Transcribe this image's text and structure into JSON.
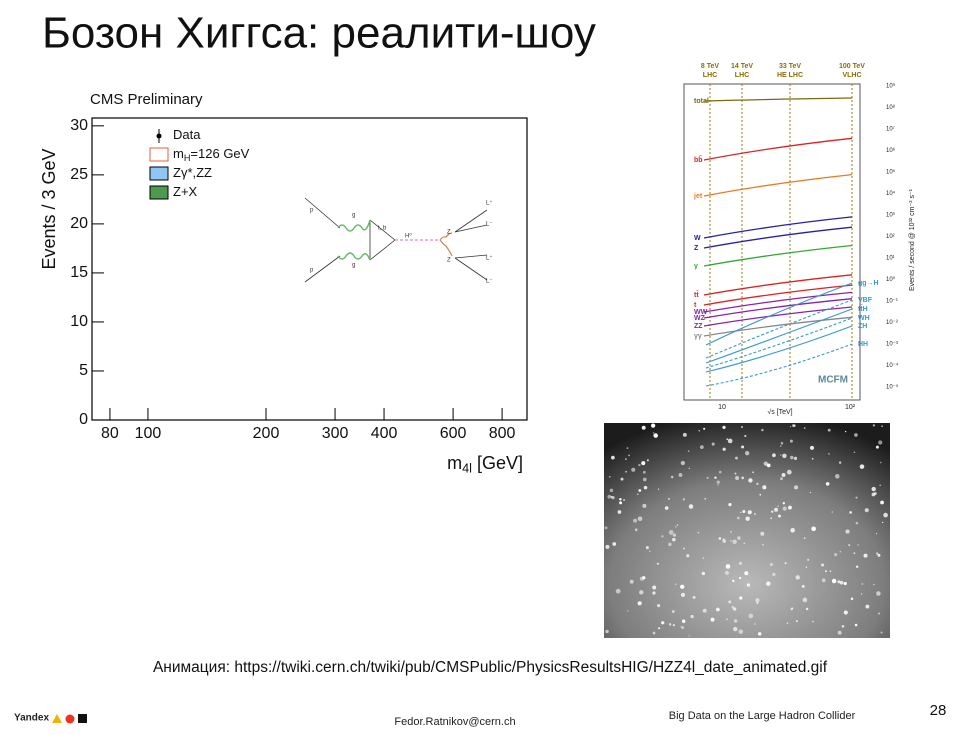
{
  "title": "Бозон Хиггса: реалити-шоу",
  "cms_plot": {
    "label": "CMS Preliminary",
    "ylabel": "Events / 3 GeV",
    "xlabel": {
      "main": "m",
      "sub": "4l",
      "rest": " [GeV]"
    },
    "legend": [
      {
        "main": "Data"
      },
      {
        "main": "m",
        "sub": "H",
        "rest": "=126 GeV",
        "color": "#e8603c"
      },
      {
        "main": "Zγ*,ZZ",
        "color": "#8ec7f5"
      },
      {
        "main": "Z+X",
        "color": "#4e9a4e"
      }
    ],
    "ylim": [
      0,
      30.8
    ],
    "yticks": [
      0,
      5,
      10,
      15,
      20,
      25,
      30
    ],
    "xlim": [
      72,
      926
    ],
    "xticks": [
      80,
      100,
      200,
      300,
      400,
      600,
      800
    ],
    "xscale": "log"
  },
  "feynman": {
    "labels": [
      "p",
      "p",
      "g",
      "g",
      "t, b",
      "H⁰",
      "Z",
      "Z",
      "L⁺",
      "L⁻",
      "L⁺",
      "L⁻"
    ]
  },
  "cross_section": {
    "energies": [
      {
        "energy": "8 TeV",
        "machine": "LHC"
      },
      {
        "energy": "14 TeV",
        "machine": "LHC"
      },
      {
        "energy": "33 TeV",
        "machine": "HE LHC"
      },
      {
        "energy": "100 TeV",
        "machine": "VLHC"
      }
    ],
    "processes": [
      "total",
      "bb̄",
      "jet",
      "W",
      "Z",
      "γ",
      "tt̄",
      "t",
      "WW",
      "WZ",
      "ZZ",
      "γγ"
    ],
    "higgs": [
      "gg→H",
      "VBF",
      "tt̄H",
      "WH",
      "ZH",
      "HH"
    ],
    "rates": [
      "10⁹",
      "10⁸",
      "10⁷",
      "10⁶",
      "10⁵",
      "10⁴",
      "10³",
      "10²",
      "10¹",
      "10⁰",
      "10⁻¹",
      "10⁻²",
      "10⁻³",
      "10⁻⁴",
      "10⁻⁵"
    ],
    "rate_label": "Events / second @ 10³² cm⁻² s⁻¹",
    "x_ticks": [
      "10",
      "10²"
    ],
    "x_label": "√s [TeV]",
    "credit": "MCFM"
  },
  "caption": "Анимация: https://twiki.cern.ch/twiki/pub/CMSPublic/PhysicsResultsHIG/HZZ4l_date_animated.gif",
  "footer": {
    "logo": "Yandex",
    "email": "Fedor.Ratnikov@cern.ch",
    "course": "Big Data on the Large Hadron Collider",
    "page": "28"
  }
}
